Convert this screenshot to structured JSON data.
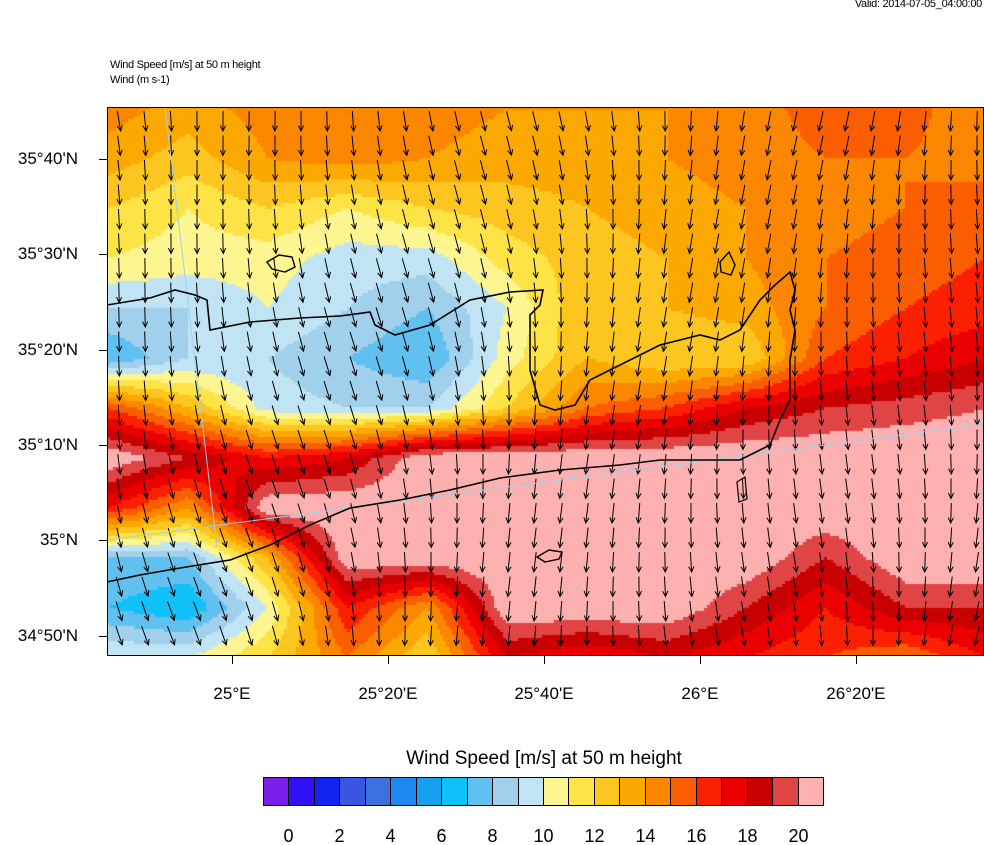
{
  "header": {
    "valid": "Valid: 2014-07-05_04:00:00",
    "field_title": "Wind Speed [m/s] at 50 m height",
    "vector_title": "Wind   (m s-1)"
  },
  "chart_data": {
    "type": "heatmap",
    "title": "Wind Speed [m/s] at 50 m height",
    "units": "m/s",
    "lat_tick_labels": [
      "35°40'N",
      "35°30'N",
      "35°20'N",
      "35°10'N",
      "35°N",
      "34°50'N"
    ],
    "lat_ticks": [
      35.6667,
      35.5,
      35.3333,
      35.1667,
      35.0,
      34.8333
    ],
    "lon_tick_labels": [
      "25°E",
      "25°20'E",
      "25°40'E",
      "26°E",
      "26°20'E"
    ],
    "lon_ticks": [
      25.0,
      25.3333,
      25.6667,
      26.0,
      26.3333
    ],
    "lon_range": [
      24.733,
      26.607
    ],
    "lat_range": [
      34.798,
      35.757
    ],
    "grid_lons": [
      24.733,
      24.904,
      25.075,
      25.246,
      25.417,
      25.588,
      25.759,
      25.93,
      26.101,
      26.272,
      26.443,
      26.607
    ],
    "grid_lats": [
      35.757,
      35.67,
      35.582,
      35.495,
      35.408,
      35.32,
      35.233,
      35.146,
      35.058,
      34.971,
      34.884,
      34.798
    ],
    "speed_grid": [
      [
        14.5,
        13.5,
        14.5,
        14.5,
        14.5,
        14,
        14,
        14,
        14.5,
        15.5,
        15.5,
        14
      ],
      [
        13.5,
        12.5,
        14,
        14.5,
        14,
        13.5,
        13.5,
        14,
        14.5,
        15,
        15,
        14.5
      ],
      [
        12,
        11,
        12,
        11,
        12,
        12.5,
        13,
        13.5,
        14,
        14.5,
        15,
        15.5
      ],
      [
        11,
        10.5,
        10.5,
        9.5,
        9.5,
        11.5,
        12.5,
        13,
        14,
        15,
        15.5,
        16
      ],
      [
        9,
        9,
        10,
        9,
        8,
        10,
        13,
        13,
        13.5,
        15,
        16,
        16.5
      ],
      [
        7,
        9,
        9,
        8,
        7,
        10.5,
        13,
        12,
        12,
        16,
        17,
        18
      ],
      [
        16,
        13,
        9.5,
        9,
        9,
        12,
        15,
        16,
        18,
        19,
        19.5,
        20
      ],
      [
        21,
        19,
        17,
        18,
        21,
        21,
        21,
        21,
        21,
        21,
        21,
        21
      ],
      [
        17,
        14,
        21,
        21,
        21,
        21,
        21,
        21,
        21,
        21,
        21,
        21
      ],
      [
        8,
        8,
        13,
        21,
        21,
        21,
        21,
        21,
        21,
        19,
        21,
        21
      ],
      [
        7,
        6,
        10,
        17,
        14,
        21,
        21,
        21,
        19,
        17,
        19,
        19
      ],
      [
        10,
        10,
        12,
        15,
        12,
        18,
        17,
        18,
        17,
        16,
        15,
        17
      ]
    ],
    "wind_direction_from_deg": 355,
    "colorbar": {
      "title": "Wind Speed [m/s] at 50 m height",
      "labels": [
        "0",
        "2",
        "4",
        "6",
        "8",
        "10",
        "12",
        "14",
        "16",
        "18",
        "20"
      ],
      "colors": [
        "#7a1fe8",
        "#3010f5",
        "#1424f0",
        "#3a55e0",
        "#3a70e0",
        "#2088f5",
        "#18a0f0",
        "#10c0f8",
        "#60c0f0",
        "#a0d0ec",
        "#c0e4f4",
        "#fcf590",
        "#fde345",
        "#fdc520",
        "#fba800",
        "#fb8600",
        "#fb5e00",
        "#fb2000",
        "#ea0000",
        "#c80000",
        "#e04444",
        "#fcb0b0"
      ]
    }
  }
}
